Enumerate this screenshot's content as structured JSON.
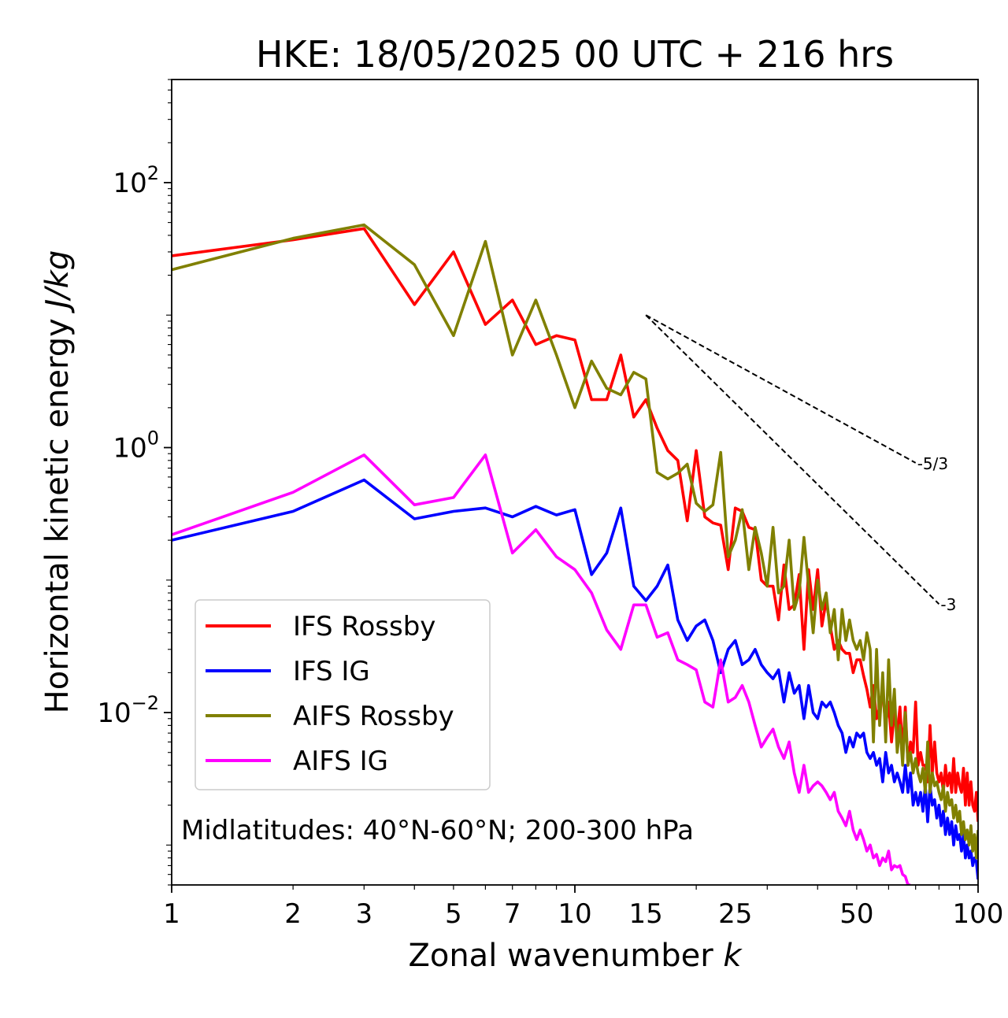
{
  "chart_data": {
    "type": "line",
    "title": "HKE: 18/05/2025 00 UTC + 216 hrs",
    "xlabel": "Zonal wavenumber",
    "xlabel_var": "k",
    "ylabel": "Horizontal kinetic energy",
    "ylabel_unit": "J/kg",
    "xscale": "log",
    "yscale": "log",
    "xlim": [
      1,
      100
    ],
    "ylim": [
      0.0005,
      600
    ],
    "grid": false,
    "legend_position": "lower-left",
    "annotation": "Midlatitudes: 40°N-60°N; 200-300 hPa",
    "x_ticks": [
      {
        "value": 1,
        "label": "1"
      },
      {
        "value": 2,
        "label": "2"
      },
      {
        "value": 3,
        "label": "3"
      },
      {
        "value": 5,
        "label": "5"
      },
      {
        "value": 7,
        "label": "7"
      },
      {
        "value": 10,
        "label": "10"
      },
      {
        "value": 15,
        "label": "15"
      },
      {
        "value": 25,
        "label": "25"
      },
      {
        "value": 50,
        "label": "50"
      },
      {
        "value": 100,
        "label": "100"
      }
    ],
    "y_ticks": [
      {
        "value": 100,
        "base": "10",
        "exp": "2"
      },
      {
        "value": 1,
        "base": "10",
        "exp": "0"
      },
      {
        "value": 0.01,
        "base": "10",
        "exp": "−2"
      }
    ],
    "reference_slopes": [
      {
        "label": "-5/3",
        "slope": -1.6667,
        "k_start": 15,
        "k_end": 70,
        "e_start": 10
      },
      {
        "label": "-3",
        "slope": -3,
        "k_start": 15,
        "k_end": 80,
        "e_start": 10
      }
    ],
    "series": [
      {
        "name": "IFS Rossby",
        "color": "#ff0000",
        "x": [
          1,
          2,
          3,
          4,
          5,
          6,
          7,
          8,
          9,
          10,
          11,
          12,
          13,
          14,
          15,
          16,
          17,
          18,
          19,
          20,
          21,
          22,
          23,
          24,
          25,
          26,
          27,
          28,
          29,
          30,
          31,
          32,
          33,
          34,
          35,
          36,
          37,
          38,
          39,
          40,
          41,
          42,
          43,
          44,
          45,
          46,
          47,
          48,
          49,
          50,
          51,
          52,
          53,
          54,
          55,
          56,
          57,
          58,
          59,
          60,
          61,
          62,
          63,
          64,
          65,
          66,
          67,
          68,
          69,
          70,
          71,
          72,
          73,
          74,
          75,
          76,
          77,
          78,
          79,
          80,
          81,
          82,
          83,
          84,
          85,
          86,
          87,
          88,
          89,
          90,
          91,
          92,
          93,
          94,
          95,
          96,
          97,
          98,
          99,
          100
        ],
        "y": [
          28,
          37,
          45,
          12,
          30,
          8.5,
          13,
          6,
          7,
          6.5,
          2.3,
          2.3,
          5,
          1.7,
          2.3,
          1.4,
          0.95,
          0.8,
          0.28,
          0.95,
          0.3,
          0.27,
          0.26,
          0.12,
          0.35,
          0.33,
          0.25,
          0.24,
          0.1,
          0.09,
          0.09,
          0.05,
          0.13,
          0.06,
          0.065,
          0.11,
          0.03,
          0.12,
          0.06,
          0.12,
          0.045,
          0.07,
          0.045,
          0.03,
          0.035,
          0.03,
          0.028,
          0.028,
          0.02,
          0.025,
          0.025,
          0.019,
          0.015,
          0.011,
          0.016,
          0.009,
          0.011,
          0.014,
          0.008,
          0.012,
          0.006,
          0.01,
          0.007,
          0.011,
          0.005,
          0.011,
          0.004,
          0.006,
          0.005,
          0.012,
          0.004,
          0.005,
          0.004,
          0.004,
          0.003,
          0.008,
          0.0035,
          0.006,
          0.0035,
          0.003,
          0.0035,
          0.0025,
          0.004,
          0.0028,
          0.0035,
          0.0025,
          0.0045,
          0.0025,
          0.0035,
          0.0028,
          0.0025,
          0.0038,
          0.002,
          0.0035,
          0.002,
          0.003,
          0.002,
          0.0018,
          0.0025,
          0.0015
        ]
      },
      {
        "name": "IFS IG",
        "color": "#0000ff",
        "x": [
          1,
          2,
          3,
          4,
          5,
          6,
          7,
          8,
          9,
          10,
          11,
          12,
          13,
          14,
          15,
          16,
          17,
          18,
          19,
          20,
          21,
          22,
          23,
          24,
          25,
          26,
          27,
          28,
          29,
          30,
          31,
          32,
          33,
          34,
          35,
          36,
          37,
          38,
          39,
          40,
          41,
          42,
          43,
          44,
          45,
          46,
          47,
          48,
          49,
          50,
          51,
          52,
          53,
          54,
          55,
          56,
          57,
          58,
          59,
          60,
          61,
          62,
          63,
          64,
          65,
          66,
          67,
          68,
          69,
          70,
          71,
          72,
          73,
          74,
          75,
          76,
          77,
          78,
          79,
          80,
          81,
          82,
          83,
          84,
          85,
          86,
          87,
          88,
          89,
          90,
          91,
          92,
          93,
          94,
          95,
          96,
          97,
          98,
          99,
          100
        ],
        "y": [
          0.2,
          0.33,
          0.57,
          0.29,
          0.33,
          0.35,
          0.3,
          0.36,
          0.31,
          0.34,
          0.11,
          0.16,
          0.35,
          0.09,
          0.07,
          0.09,
          0.13,
          0.05,
          0.035,
          0.045,
          0.05,
          0.035,
          0.02,
          0.03,
          0.035,
          0.023,
          0.025,
          0.03,
          0.023,
          0.02,
          0.018,
          0.021,
          0.012,
          0.02,
          0.014,
          0.016,
          0.009,
          0.016,
          0.01,
          0.009,
          0.012,
          0.011,
          0.012,
          0.01,
          0.008,
          0.007,
          0.005,
          0.0065,
          0.0055,
          0.007,
          0.0065,
          0.007,
          0.005,
          0.0045,
          0.005,
          0.004,
          0.0045,
          0.003,
          0.005,
          0.0035,
          0.004,
          0.003,
          0.0035,
          0.003,
          0.0025,
          0.004,
          0.0025,
          0.0035,
          0.002,
          0.0025,
          0.002,
          0.0025,
          0.0018,
          0.0028,
          0.0015,
          0.0028,
          0.002,
          0.0022,
          0.0016,
          0.002,
          0.0014,
          0.0018,
          0.0012,
          0.0016,
          0.0012,
          0.0015,
          0.001,
          0.0014,
          0.0011,
          0.0012,
          0.0009,
          0.0012,
          0.0008,
          0.001,
          0.0008,
          0.0009,
          0.0007,
          0.0008,
          0.00075,
          0.00055
        ]
      },
      {
        "name": "AIFS Rossby",
        "color": "#808000",
        "x": [
          1,
          2,
          3,
          4,
          5,
          6,
          7,
          8,
          9,
          10,
          11,
          12,
          13,
          14,
          15,
          16,
          17,
          18,
          19,
          20,
          21,
          22,
          23,
          24,
          25,
          26,
          27,
          28,
          29,
          30,
          31,
          32,
          33,
          34,
          35,
          36,
          37,
          38,
          39,
          40,
          41,
          42,
          43,
          44,
          45,
          46,
          47,
          48,
          49,
          50,
          51,
          52,
          53,
          54,
          55,
          56,
          57,
          58,
          59,
          60,
          61,
          62,
          63,
          64,
          65,
          66,
          67,
          68,
          69,
          70,
          71,
          72,
          73,
          74,
          75,
          76,
          77,
          78,
          79,
          80,
          81,
          82,
          83,
          84,
          85,
          86,
          87,
          88,
          89,
          90,
          91,
          92,
          93,
          94,
          95,
          96,
          97,
          98,
          99,
          100
        ],
        "y": [
          22,
          38,
          48,
          24,
          7,
          36,
          5,
          13,
          5,
          2,
          4.5,
          2.8,
          2.5,
          3.7,
          3.3,
          0.65,
          0.58,
          0.64,
          0.75,
          0.38,
          0.33,
          0.37,
          0.92,
          0.15,
          0.2,
          0.34,
          0.12,
          0.25,
          0.16,
          0.09,
          0.25,
          0.08,
          0.09,
          0.2,
          0.06,
          0.08,
          0.21,
          0.09,
          0.04,
          0.1,
          0.06,
          0.08,
          0.04,
          0.06,
          0.025,
          0.06,
          0.035,
          0.05,
          0.035,
          0.03,
          0.035,
          0.025,
          0.04,
          0.03,
          0.006,
          0.03,
          0.008,
          0.02,
          0.006,
          0.025,
          0.008,
          0.015,
          0.005,
          0.008,
          0.004,
          0.01,
          0.004,
          0.005,
          0.0035,
          0.0045,
          0.0035,
          0.003,
          0.0038,
          0.0025,
          0.006,
          0.0025,
          0.0035,
          0.0028,
          0.003,
          0.0025,
          0.0022,
          0.0028,
          0.0018,
          0.0025,
          0.002,
          0.0022,
          0.0016,
          0.002,
          0.0015,
          0.0018,
          0.0012,
          0.0015,
          0.0011,
          0.0013,
          0.001,
          0.0014,
          0.0009,
          0.0012,
          0.0008,
          0.0013
        ]
      },
      {
        "name": "AIFS IG",
        "color": "#ff00ff",
        "x": [
          1,
          2,
          3,
          4,
          5,
          6,
          7,
          8,
          9,
          10,
          11,
          12,
          13,
          14,
          15,
          16,
          17,
          18,
          19,
          20,
          21,
          22,
          23,
          24,
          25,
          26,
          27,
          28,
          29,
          30,
          31,
          32,
          33,
          34,
          35,
          36,
          37,
          38,
          39,
          40,
          41,
          42,
          43,
          44,
          45,
          46,
          47,
          48,
          49,
          50,
          51,
          52,
          53,
          54,
          55,
          56,
          57,
          58,
          59,
          60,
          61,
          62,
          63,
          64,
          65,
          66,
          67,
          68
        ],
        "y": [
          0.22,
          0.46,
          0.88,
          0.37,
          0.42,
          0.88,
          0.16,
          0.24,
          0.15,
          0.12,
          0.08,
          0.042,
          0.03,
          0.065,
          0.065,
          0.037,
          0.04,
          0.025,
          0.023,
          0.021,
          0.012,
          0.011,
          0.025,
          0.012,
          0.013,
          0.016,
          0.012,
          0.008,
          0.0055,
          0.0065,
          0.0075,
          0.0055,
          0.0045,
          0.006,
          0.0035,
          0.0025,
          0.004,
          0.0025,
          0.0028,
          0.003,
          0.0028,
          0.0025,
          0.0022,
          0.0025,
          0.0018,
          0.0016,
          0.0014,
          0.0018,
          0.0013,
          0.0011,
          0.0013,
          0.0011,
          0.0009,
          0.001,
          0.0008,
          0.00085,
          0.0007,
          0.0008,
          0.00075,
          0.0009,
          0.00065,
          0.0007,
          0.00068,
          0.0007,
          0.0006,
          0.00058,
          0.0005,
          0.0005
        ]
      }
    ]
  }
}
